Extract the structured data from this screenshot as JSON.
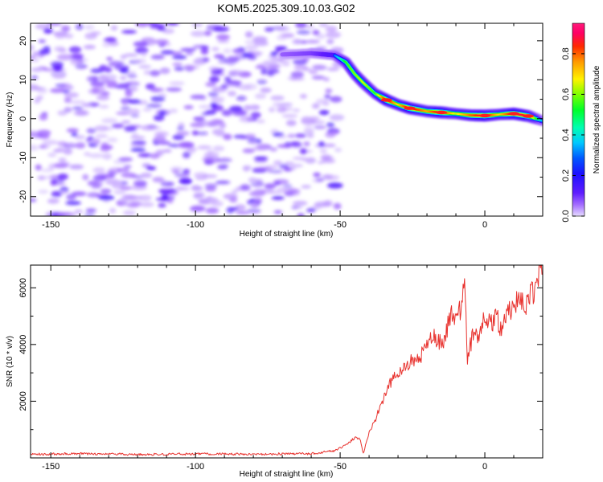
{
  "figure_title": "KOM5.2025.309.10.03.G02",
  "chart_data": [
    {
      "type": "heatmap",
      "id": "spectrogram",
      "title": "",
      "xlabel": "Height of straight line (km)",
      "ylabel": "Frequency (Hz)",
      "xlim": [
        -157,
        20
      ],
      "ylim": [
        -25,
        24.5
      ],
      "xticks": [
        -150,
        -100,
        -50,
        0
      ],
      "yticks": [
        -20,
        -10,
        0,
        10,
        20
      ],
      "colorbar": {
        "label": "Normalized spectral amplitude",
        "range": [
          0,
          0.95
        ],
        "ticks": [
          0.0,
          0.2,
          0.4,
          0.6,
          0.8
        ],
        "tick_labels": [
          "0.0",
          "0.2",
          "0.4",
          "0.6",
          "0.8"
        ]
      },
      "noise_region": {
        "x_range": [
          -157,
          -52
        ],
        "amplitude_range": [
          0.02,
          0.15
        ]
      },
      "signal_trace": {
        "x": [
          -70,
          -60,
          -52,
          -48,
          -45,
          -42,
          -38,
          -34,
          -30,
          -26,
          -20,
          -15,
          -10,
          -5,
          0,
          5,
          10,
          15,
          20
        ],
        "y": [
          16.5,
          16.8,
          16.3,
          14.5,
          11.5,
          9.2,
          6.5,
          4.8,
          3.6,
          2.7,
          1.9,
          1.6,
          1.3,
          0.9,
          0.8,
          1.1,
          1.3,
          0.7,
          -0.6
        ],
        "amplitude": [
          0.15,
          0.2,
          0.3,
          0.55,
          0.6,
          0.65,
          0.55,
          0.9,
          0.7,
          0.9,
          0.75,
          0.9,
          0.65,
          0.8,
          0.9,
          0.7,
          0.9,
          0.85,
          0.35
        ]
      }
    },
    {
      "type": "line",
      "id": "snr",
      "title": "",
      "xlabel": "Height of straight line (km)",
      "ylabel": "SNR (10 * v/v)",
      "xlim": [
        -157,
        20
      ],
      "ylim": [
        0,
        6800
      ],
      "xticks": [
        -150,
        -100,
        -50,
        0
      ],
      "yticks": [
        2000,
        4000,
        6000
      ],
      "series": [
        {
          "name": "SNR",
          "color": "#e8322e",
          "x": [
            -157,
            -140,
            -120,
            -100,
            -80,
            -60,
            -52,
            -48,
            -45,
            -43,
            -42,
            -40,
            -38,
            -36,
            -34,
            -32,
            -30,
            -28,
            -26,
            -24,
            -22,
            -20,
            -18,
            -16,
            -14,
            -12,
            -10,
            -8,
            -7,
            -6,
            -4,
            -2,
            0,
            2,
            4,
            6,
            8,
            10,
            12,
            14,
            16,
            18,
            19,
            20
          ],
          "values": [
            130,
            150,
            120,
            140,
            130,
            150,
            250,
            450,
            700,
            650,
            150,
            900,
            1300,
            1900,
            2300,
            2800,
            2900,
            3200,
            3400,
            3300,
            3600,
            3900,
            4300,
            4100,
            4200,
            5000,
            4900,
            5400,
            6100,
            3500,
            4400,
            4300,
            5100,
            4700,
            5000,
            4500,
            5200,
            5400,
            5500,
            5300,
            5800,
            6000,
            6750,
            6500
          ]
        }
      ]
    }
  ]
}
